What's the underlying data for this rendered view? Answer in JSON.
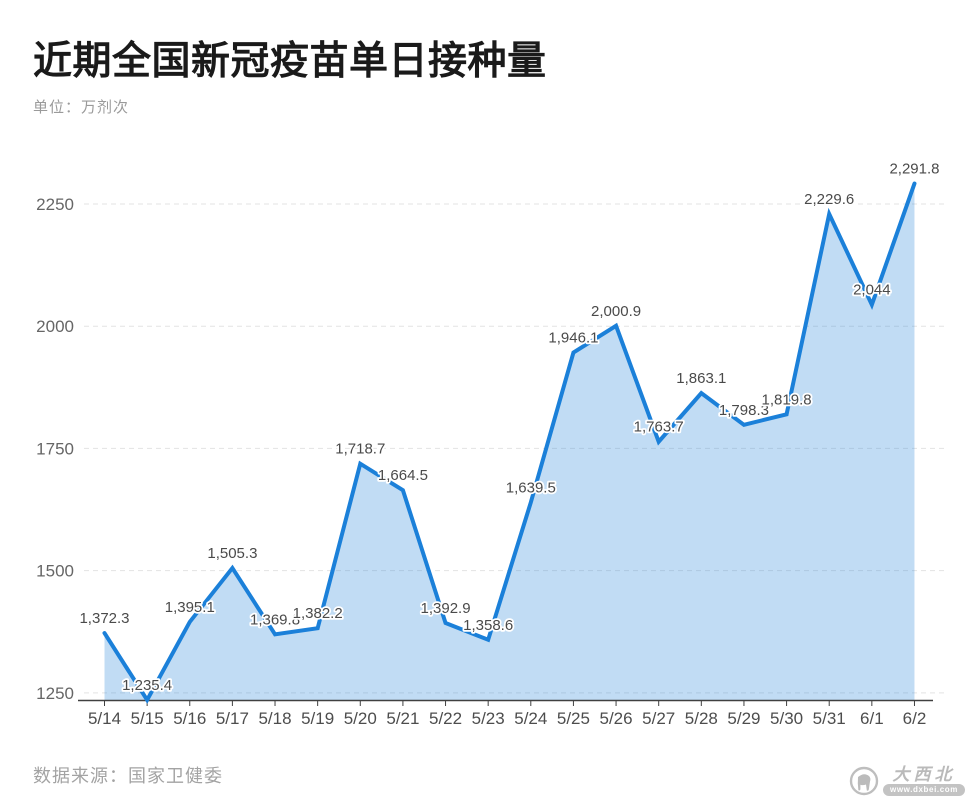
{
  "header": {
    "title": "近期全国新冠疫苗单日接种量",
    "unit": "单位：万剂次"
  },
  "footer": {
    "source": "数据来源：国家卫健委"
  },
  "watermark": {
    "name": "大西北",
    "url": "www.dxbei.com"
  },
  "chart_data": {
    "type": "area",
    "title": "近期全国新冠疫苗单日接种量",
    "unit": "万剂次",
    "categories": [
      "5/14",
      "5/15",
      "5/16",
      "5/17",
      "5/18",
      "5/19",
      "5/20",
      "5/21",
      "5/22",
      "5/23",
      "5/24",
      "5/25",
      "5/26",
      "5/27",
      "5/28",
      "5/29",
      "5/30",
      "5/31",
      "6/1",
      "6/2"
    ],
    "values": [
      1372.3,
      1235.4,
      1395.1,
      1505.3,
      1369.8,
      1382.2,
      1718.7,
      1664.5,
      1392.9,
      1358.6,
      1639.5,
      1946.1,
      2000.9,
      1763.7,
      1863.1,
      1798.3,
      1819.8,
      2229.6,
      2044,
      2291.8
    ],
    "labels": [
      "1,372.3",
      "1,235.4",
      "1,395.1",
      "1,505.3",
      "1,369.8",
      "1,382.2",
      "1,718.7",
      "1,664.5",
      "1,392.9",
      "1,358.6",
      "1,639.5",
      "1,946.1",
      "2,000.9",
      "1,763.7",
      "1,863.1",
      "1,798.3",
      "1,819.8",
      "2,229.6",
      "2,044",
      "2,291.8"
    ],
    "yticks": [
      1250,
      1500,
      1750,
      2000,
      2250
    ],
    "ylim": [
      1235.4,
      2300
    ],
    "grid": "horizontal-dashed",
    "legend": "none",
    "line_color": "#1b80d9",
    "fill_color": "rgba(31,128,216,0.28)",
    "axis_color": "#404040",
    "label_color": "#4a4a4a"
  }
}
